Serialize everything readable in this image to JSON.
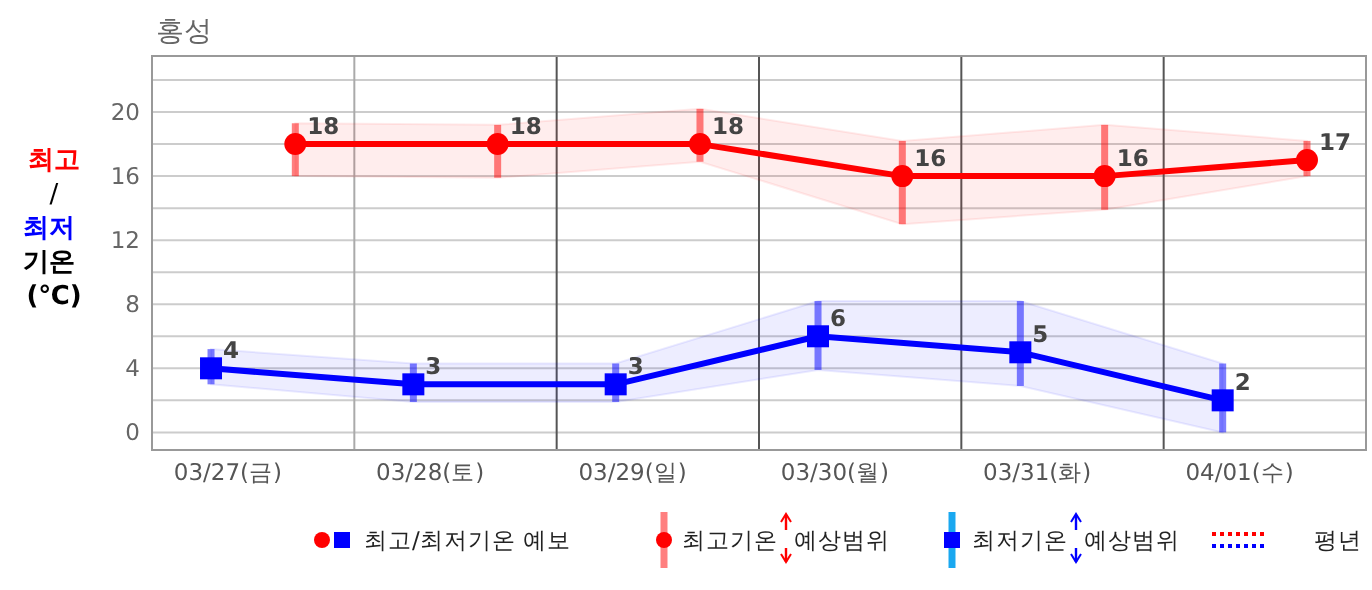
{
  "chart_data": {
    "type": "line",
    "title": "홍성",
    "ylabel": "최고/최저 기온 (℃)",
    "xlim": [
      "--03-27T00:00",
      "--04-02T00:00"
    ],
    "ylim": [
      -1.1,
      23.5
    ],
    "xticks": [
      {
        "value": "--03-27T09:00",
        "label": "03/27(금)"
      },
      {
        "value": "--03-28T09:00",
        "label": "03/28(토)"
      },
      {
        "value": "--03-29T09:00",
        "label": "03/29(일)"
      },
      {
        "value": "--03-30T09:00",
        "label": "03/30(월)"
      },
      {
        "value": "--03-31T09:00",
        "label": "03/31(화)"
      },
      {
        "value": "--04-01T09:00",
        "label": "04/01(수)"
      }
    ],
    "yticks": [
      0,
      {
        "value": 2,
        "label": null
      },
      4,
      {
        "value": 6,
        "label": null
      },
      8,
      {
        "value": 10,
        "label": null
      },
      12,
      {
        "value": 14,
        "label": null
      },
      16,
      {
        "value": 18,
        "label": null
      },
      20,
      {
        "value": 22,
        "label": null
      }
    ],
    "grid": "y",
    "data_labels": true,
    "ref_lines": [
      {
        "axis": "x",
        "value": "--03-28T00:00",
        "color": "#aaaaaa"
      },
      {
        "axis": "x",
        "value": "--03-29T00:00",
        "color": "#555555"
      },
      {
        "axis": "x",
        "value": "--03-30T00:00",
        "color": "#555555"
      },
      {
        "axis": "x",
        "value": "--03-31T00:00",
        "color": "#555555"
      },
      {
        "axis": "x",
        "value": "--04-01T00:00",
        "color": "#555555"
      }
    ],
    "series": [
      {
        "color": "#0000ff",
        "marker": "square",
        "x": [
          "--03-27T07:00",
          "--03-28T07:00",
          "--03-29T07:00",
          "--03-30T07:00",
          "--03-31T07:00",
          "--04-01T07:00"
        ],
        "values": [
          4,
          3,
          3,
          6,
          5,
          2
        ],
        "lower": [
          3,
          1.9,
          1.9,
          3.9,
          2.9,
          0
        ],
        "upper": [
          5.2,
          4.3,
          4.3,
          8.2,
          8.2,
          4.3
        ]
      },
      {
        "color": "#ff0000",
        "marker": "circle",
        "x": [
          "--03-27T17:00",
          "--03-28T17:00",
          "--03-29T17:00",
          "--03-30T17:00",
          "--03-31T17:00",
          "--04-01T17:00"
        ],
        "values": [
          18,
          18,
          18,
          16,
          16,
          17
        ],
        "lower": [
          16,
          15.9,
          16.9,
          13,
          13.9,
          16
        ],
        "upper": [
          19.3,
          19.2,
          20.2,
          18.2,
          19.2,
          18.2
        ]
      }
    ],
    "annotations": [
      "최고/최저기온 예보",
      "최고기온 예상범위",
      "최저기온 예상범위",
      "평년"
    ]
  }
}
